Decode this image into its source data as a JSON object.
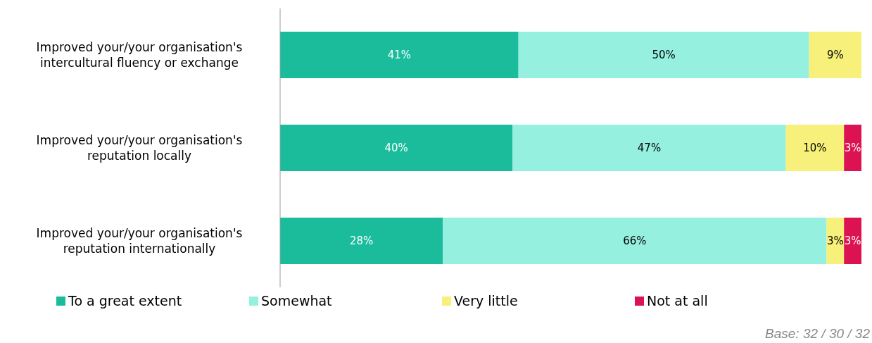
{
  "chart_data": {
    "type": "bar",
    "orientation": "horizontal",
    "stacked": true,
    "categories": [
      "Improved your/your organisation's intercultural fluency or exchange",
      "Improved your/your organisation's reputation locally",
      "Improved your/your organisation's reputation internationally"
    ],
    "series": [
      {
        "name": "To a great extent",
        "color": "#1abc9c",
        "values": [
          41,
          40,
          28
        ],
        "value_labels": [
          "41%",
          "40%",
          "28%"
        ]
      },
      {
        "name": "Somewhat",
        "color": "#96f0e0",
        "values": [
          50,
          47,
          66
        ],
        "value_labels": [
          "50%",
          "47%",
          "66%"
        ]
      },
      {
        "name": "Very little",
        "color": "#f7f07a",
        "values": [
          9,
          10,
          3
        ],
        "value_labels": [
          "9%",
          "10%",
          "3%"
        ]
      },
      {
        "name": "Not at all",
        "color": "#dc1252",
        "values": [
          null,
          3,
          3
        ],
        "value_labels": [
          null,
          "3%",
          "3%"
        ]
      }
    ],
    "legend": "bottom",
    "annotations": [
      "Base: 32 / 30 / 32"
    ]
  }
}
